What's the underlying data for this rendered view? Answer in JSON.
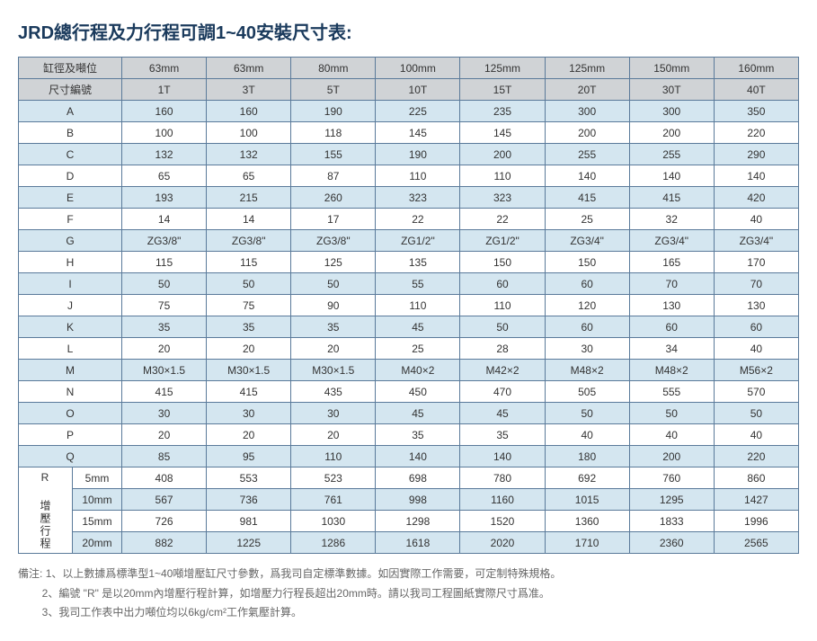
{
  "title": "JRD總行程及力行程可調1~40安裝尺寸表:",
  "header_row1_label": "缸徑及噸位",
  "header_row2_label": "尺寸編號",
  "bore_sizes": [
    "63mm",
    "63mm",
    "80mm",
    "100mm",
    "125mm",
    "125mm",
    "150mm",
    "160mm"
  ],
  "code_sizes": [
    "1T",
    "3T",
    "5T",
    "10T",
    "15T",
    "20T",
    "30T",
    "40T"
  ],
  "row_labels": [
    "A",
    "B",
    "C",
    "D",
    "E",
    "F",
    "G",
    "H",
    "I",
    "J",
    "K",
    "L",
    "M",
    "N",
    "O",
    "P",
    "Q"
  ],
  "rows": [
    [
      "160",
      "160",
      "190",
      "225",
      "235",
      "300",
      "300",
      "350"
    ],
    [
      "100",
      "100",
      "118",
      "145",
      "145",
      "200",
      "200",
      "220"
    ],
    [
      "132",
      "132",
      "155",
      "190",
      "200",
      "255",
      "255",
      "290"
    ],
    [
      "65",
      "65",
      "87",
      "110",
      "110",
      "140",
      "140",
      "140"
    ],
    [
      "193",
      "215",
      "260",
      "323",
      "323",
      "415",
      "415",
      "420"
    ],
    [
      "14",
      "14",
      "17",
      "22",
      "22",
      "25",
      "32",
      "40"
    ],
    [
      "ZG3/8\"",
      "ZG3/8\"",
      "ZG3/8\"",
      "ZG1/2\"",
      "ZG1/2\"",
      "ZG3/4\"",
      "ZG3/4\"",
      "ZG3/4\""
    ],
    [
      "115",
      "115",
      "125",
      "135",
      "150",
      "150",
      "165",
      "170"
    ],
    [
      "50",
      "50",
      "50",
      "55",
      "60",
      "60",
      "70",
      "70"
    ],
    [
      "75",
      "75",
      "90",
      "110",
      "110",
      "120",
      "130",
      "130"
    ],
    [
      "35",
      "35",
      "35",
      "45",
      "50",
      "60",
      "60",
      "60"
    ],
    [
      "20",
      "20",
      "20",
      "25",
      "28",
      "30",
      "34",
      "40"
    ],
    [
      "M30×1.5",
      "M30×1.5",
      "M30×1.5",
      "M40×2",
      "M42×2",
      "M48×2",
      "M48×2",
      "M56×2"
    ],
    [
      "415",
      "415",
      "435",
      "450",
      "470",
      "505",
      "555",
      "570"
    ],
    [
      "30",
      "30",
      "30",
      "45",
      "45",
      "50",
      "50",
      "50"
    ],
    [
      "20",
      "20",
      "20",
      "35",
      "35",
      "40",
      "40",
      "40"
    ],
    [
      "85",
      "95",
      "110",
      "140",
      "140",
      "180",
      "200",
      "220"
    ]
  ],
  "r_group_label": "R 增壓行程",
  "r_sub_labels": [
    "5mm",
    "10mm",
    "15mm",
    "20mm"
  ],
  "r_rows": [
    [
      "408",
      "553",
      "523",
      "698",
      "780",
      "692",
      "760",
      "860"
    ],
    [
      "567",
      "736",
      "761",
      "998",
      "1160",
      "1015",
      "1295",
      "1427"
    ],
    [
      "726",
      "981",
      "1030",
      "1298",
      "1520",
      "1360",
      "1833",
      "1996"
    ],
    [
      "882",
      "1225",
      "1286",
      "1618",
      "2020",
      "1710",
      "2360",
      "2565"
    ]
  ],
  "notes_label": "備注:",
  "notes": [
    "1、以上數據爲標準型1~40噸增壓缸尺寸參數，爲我司自定標準數據。如因實際工作需要，可定制特殊規格。",
    "2、編號 \"R\" 是以20mm內增壓行程計算，如增壓力行程長超出20mm時。請以我司工程圖紙實際尺寸爲准。",
    "3、我司工作表中出力噸位均以6kg/cm²工作氣壓計算。"
  ],
  "style": {
    "header_bg": "#d0d3d6",
    "alt_bg": "#d4e6f0",
    "border_color": "#5a7a9a",
    "title_color": "#1a3a5c"
  }
}
